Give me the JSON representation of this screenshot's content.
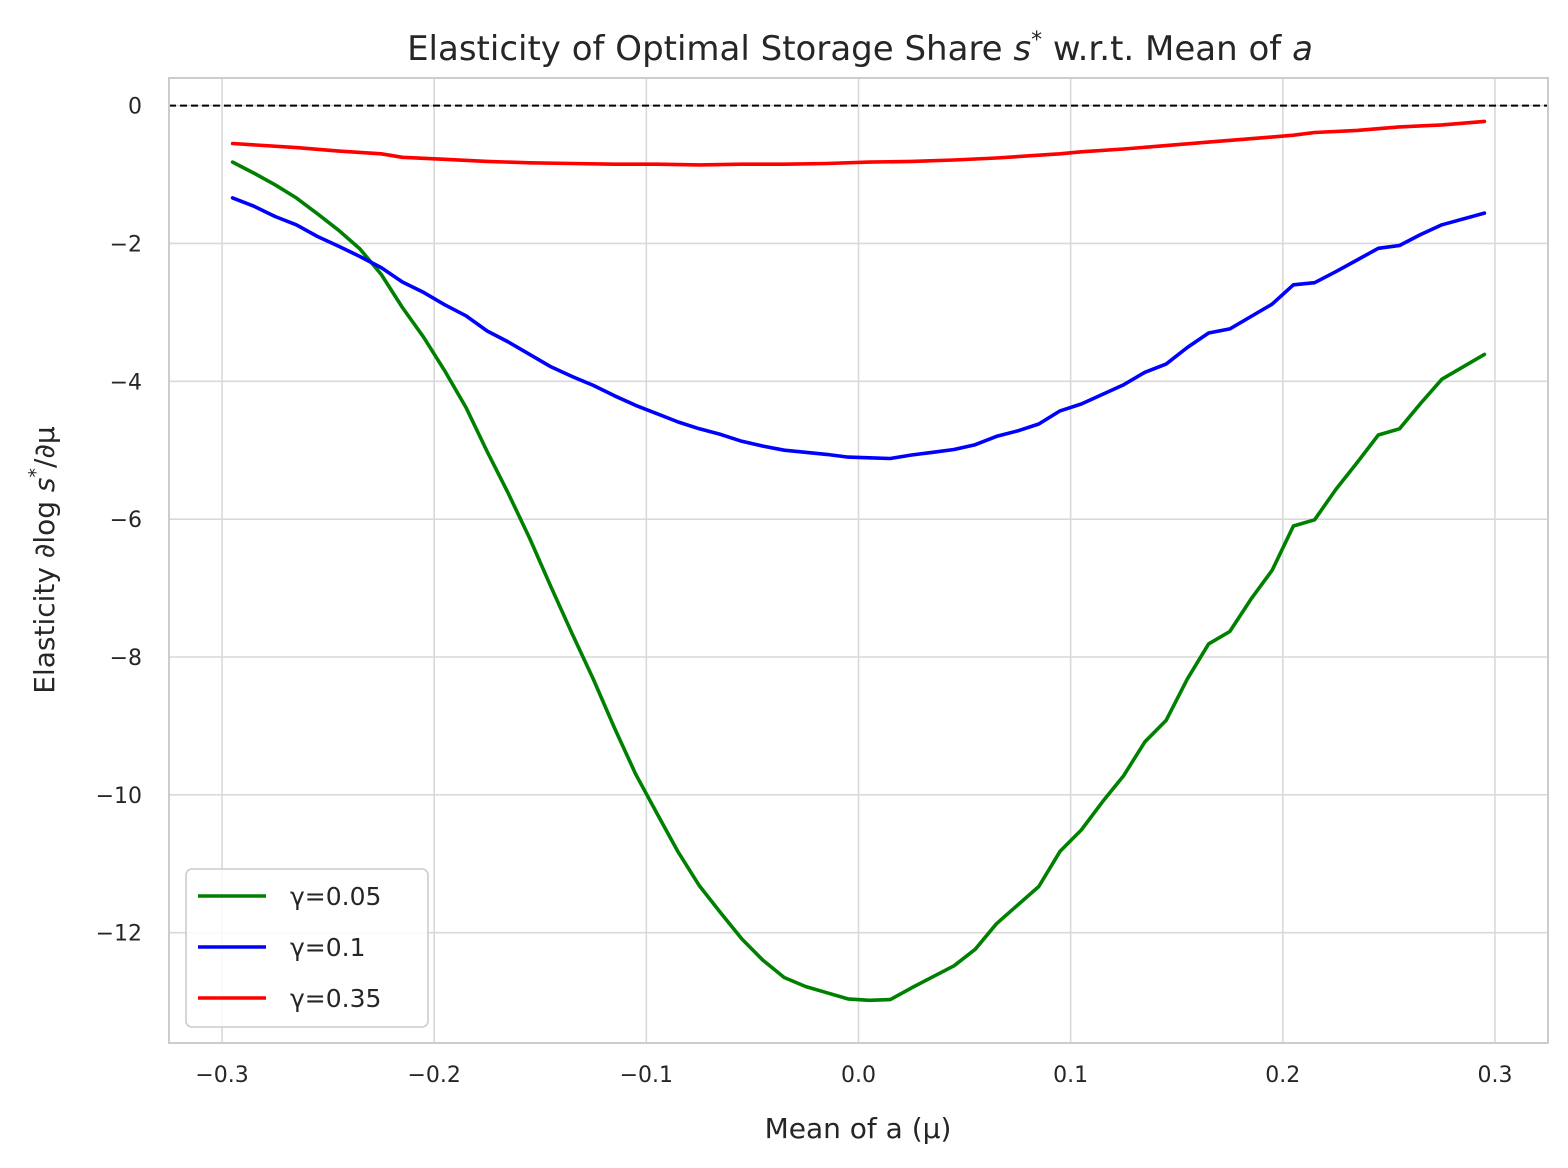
{
  "chart_data": {
    "type": "line",
    "title_prefix": "Elasticity of Optimal Storage Share ",
    "title_symbol": "s",
    "title_sup": "*",
    "title_middle": " w.r.t. Mean of ",
    "title_var": "a",
    "xlabel": "Mean of a (μ)",
    "ylabel_prefix": "Elasticity ∂log ",
    "ylabel_symbol": "s",
    "ylabel_sup": "*",
    "ylabel_suffix": "/∂μ",
    "xlim": [
      -0.325,
      0.325
    ],
    "ylim": [
      -13.6,
      0.4
    ],
    "xticks": [
      -0.3,
      -0.2,
      -0.1,
      0.0,
      0.1,
      0.2,
      0.3
    ],
    "xtick_labels": [
      "−0.3",
      "−0.2",
      "−0.1",
      "0.0",
      "0.1",
      "0.2",
      "0.3"
    ],
    "yticks": [
      0,
      -2,
      -4,
      -6,
      -8,
      -10,
      -12
    ],
    "ytick_labels": [
      "0",
      "−2",
      "−4",
      "−6",
      "−8",
      "−10",
      "−12"
    ],
    "grid": true,
    "reference_line": {
      "y": 0,
      "style": "dashed",
      "color": "#000000"
    },
    "legend_position": "lower-left",
    "series": [
      {
        "name": "γ=0.05",
        "color": "#008000",
        "points": [
          [
            -0.295,
            -0.82
          ],
          [
            -0.285,
            -0.98
          ],
          [
            -0.275,
            -1.15
          ],
          [
            -0.265,
            -1.34
          ],
          [
            -0.255,
            -1.57
          ],
          [
            -0.245,
            -1.81
          ],
          [
            -0.235,
            -2.08
          ],
          [
            -0.225,
            -2.45
          ],
          [
            -0.215,
            -2.93
          ],
          [
            -0.205,
            -3.36
          ],
          [
            -0.195,
            -3.85
          ],
          [
            -0.185,
            -4.38
          ],
          [
            -0.175,
            -5.02
          ],
          [
            -0.165,
            -5.63
          ],
          [
            -0.155,
            -6.28
          ],
          [
            -0.145,
            -6.98
          ],
          [
            -0.135,
            -7.66
          ],
          [
            -0.125,
            -8.32
          ],
          [
            -0.115,
            -9.03
          ],
          [
            -0.105,
            -9.7
          ],
          [
            -0.095,
            -10.27
          ],
          [
            -0.085,
            -10.83
          ],
          [
            -0.075,
            -11.32
          ],
          [
            -0.065,
            -11.71
          ],
          [
            -0.055,
            -12.09
          ],
          [
            -0.045,
            -12.4
          ],
          [
            -0.035,
            -12.65
          ],
          [
            -0.025,
            -12.78
          ],
          [
            -0.015,
            -12.87
          ],
          [
            -0.005,
            -12.96
          ],
          [
            0.005,
            -12.98
          ],
          [
            0.015,
            -12.97
          ],
          [
            0.025,
            -12.8
          ],
          [
            0.035,
            -12.64
          ],
          [
            0.045,
            -12.48
          ],
          [
            0.055,
            -12.24
          ],
          [
            0.065,
            -11.87
          ],
          [
            0.075,
            -11.6
          ],
          [
            0.085,
            -11.33
          ],
          [
            0.095,
            -10.82
          ],
          [
            0.105,
            -10.51
          ],
          [
            0.115,
            -10.1
          ],
          [
            0.125,
            -9.72
          ],
          [
            0.135,
            -9.23
          ],
          [
            0.145,
            -8.92
          ],
          [
            0.155,
            -8.32
          ],
          [
            0.165,
            -7.81
          ],
          [
            0.175,
            -7.63
          ],
          [
            0.185,
            -7.16
          ],
          [
            0.195,
            -6.74
          ],
          [
            0.205,
            -6.1
          ],
          [
            0.215,
            -6.01
          ],
          [
            0.225,
            -5.57
          ],
          [
            0.235,
            -5.18
          ],
          [
            0.245,
            -4.78
          ],
          [
            0.255,
            -4.69
          ],
          [
            0.265,
            -4.32
          ],
          [
            0.275,
            -3.97
          ],
          [
            0.295,
            -3.61
          ]
        ]
      },
      {
        "name": "γ=0.1",
        "color": "#0000ff",
        "points": [
          [
            -0.295,
            -1.34
          ],
          [
            -0.285,
            -1.46
          ],
          [
            -0.275,
            -1.61
          ],
          [
            -0.265,
            -1.73
          ],
          [
            -0.255,
            -1.9
          ],
          [
            -0.245,
            -2.04
          ],
          [
            -0.235,
            -2.19
          ],
          [
            -0.225,
            -2.35
          ],
          [
            -0.215,
            -2.56
          ],
          [
            -0.205,
            -2.71
          ],
          [
            -0.195,
            -2.89
          ],
          [
            -0.185,
            -3.05
          ],
          [
            -0.175,
            -3.27
          ],
          [
            -0.165,
            -3.43
          ],
          [
            -0.155,
            -3.61
          ],
          [
            -0.145,
            -3.79
          ],
          [
            -0.135,
            -3.93
          ],
          [
            -0.125,
            -4.06
          ],
          [
            -0.115,
            -4.21
          ],
          [
            -0.105,
            -4.35
          ],
          [
            -0.095,
            -4.47
          ],
          [
            -0.085,
            -4.59
          ],
          [
            -0.075,
            -4.69
          ],
          [
            -0.065,
            -4.77
          ],
          [
            -0.055,
            -4.87
          ],
          [
            -0.045,
            -4.94
          ],
          [
            -0.035,
            -5.0
          ],
          [
            -0.025,
            -5.03
          ],
          [
            -0.015,
            -5.06
          ],
          [
            -0.005,
            -5.1
          ],
          [
            0.005,
            -5.11
          ],
          [
            0.015,
            -5.12
          ],
          [
            0.025,
            -5.07
          ],
          [
            0.035,
            -5.03
          ],
          [
            0.045,
            -4.99
          ],
          [
            0.055,
            -4.92
          ],
          [
            0.065,
            -4.8
          ],
          [
            0.075,
            -4.72
          ],
          [
            0.085,
            -4.62
          ],
          [
            0.095,
            -4.43
          ],
          [
            0.105,
            -4.33
          ],
          [
            0.115,
            -4.19
          ],
          [
            0.125,
            -4.05
          ],
          [
            0.135,
            -3.87
          ],
          [
            0.145,
            -3.75
          ],
          [
            0.155,
            -3.51
          ],
          [
            0.165,
            -3.3
          ],
          [
            0.175,
            -3.24
          ],
          [
            0.185,
            -3.06
          ],
          [
            0.195,
            -2.88
          ],
          [
            0.205,
            -2.6
          ],
          [
            0.215,
            -2.57
          ],
          [
            0.225,
            -2.41
          ],
          [
            0.235,
            -2.24
          ],
          [
            0.245,
            -2.07
          ],
          [
            0.255,
            -2.03
          ],
          [
            0.265,
            -1.87
          ],
          [
            0.275,
            -1.73
          ],
          [
            0.295,
            -1.56
          ]
        ]
      },
      {
        "name": "γ=0.35",
        "color": "#ff0000",
        "points": [
          [
            -0.295,
            -0.55
          ],
          [
            -0.265,
            -0.61
          ],
          [
            -0.245,
            -0.66
          ],
          [
            -0.225,
            -0.7
          ],
          [
            -0.215,
            -0.75
          ],
          [
            -0.195,
            -0.78
          ],
          [
            -0.175,
            -0.81
          ],
          [
            -0.155,
            -0.83
          ],
          [
            -0.135,
            -0.84
          ],
          [
            -0.115,
            -0.85
          ],
          [
            -0.095,
            -0.85
          ],
          [
            -0.075,
            -0.86
          ],
          [
            -0.055,
            -0.85
          ],
          [
            -0.035,
            -0.85
          ],
          [
            -0.015,
            -0.84
          ],
          [
            0.005,
            -0.82
          ],
          [
            0.025,
            -0.81
          ],
          [
            0.045,
            -0.79
          ],
          [
            0.065,
            -0.76
          ],
          [
            0.085,
            -0.72
          ],
          [
            0.095,
            -0.7
          ],
          [
            0.105,
            -0.67
          ],
          [
            0.125,
            -0.63
          ],
          [
            0.145,
            -0.58
          ],
          [
            0.165,
            -0.53
          ],
          [
            0.185,
            -0.48
          ],
          [
            0.205,
            -0.43
          ],
          [
            0.215,
            -0.39
          ],
          [
            0.235,
            -0.36
          ],
          [
            0.255,
            -0.31
          ],
          [
            0.275,
            -0.28
          ],
          [
            0.295,
            -0.23
          ]
        ]
      }
    ]
  }
}
